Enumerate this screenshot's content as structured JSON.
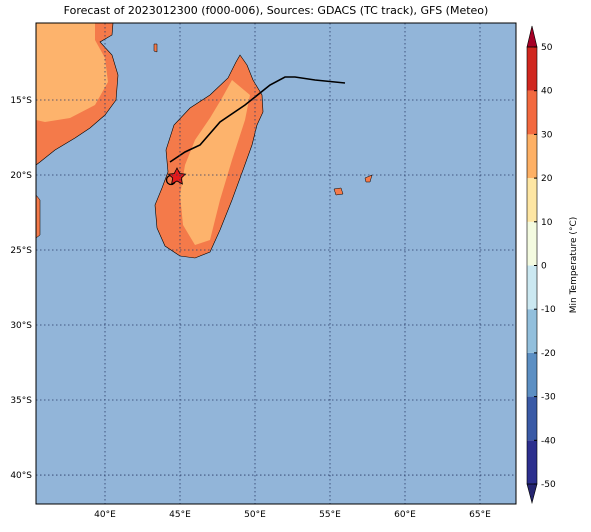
{
  "title": "Forecast of 2023012300 (f000-006), Sources: GDACS (TC track), GFS (Meteo)",
  "map": {
    "lon_range": [
      35.4,
      67.4
    ],
    "lat_range": [
      -9.87,
      -41.93
    ],
    "lon_ticks": [
      {
        "value": 40,
        "label": "40°E"
      },
      {
        "value": 45,
        "label": "45°E"
      },
      {
        "value": 50,
        "label": "50°E"
      },
      {
        "value": 55,
        "label": "55°E"
      },
      {
        "value": 60,
        "label": "60°E"
      },
      {
        "value": 65,
        "label": "65°E"
      }
    ],
    "lat_ticks": [
      {
        "value": -15,
        "label": "15°S"
      },
      {
        "value": -20,
        "label": "20°S"
      },
      {
        "value": -25,
        "label": "25°S"
      },
      {
        "value": -30,
        "label": "30°S"
      },
      {
        "value": -35,
        "label": "35°S"
      },
      {
        "value": -40,
        "label": "40°S"
      }
    ],
    "grid": true
  },
  "colorbar": {
    "label": "Min Temperature (°C)",
    "range": [
      -50,
      50
    ],
    "ticks": [
      -50,
      -40,
      -30,
      -20,
      -10,
      0,
      10,
      20,
      30,
      40,
      50
    ],
    "colors": [
      "#2c2f8e",
      "#3a5aa6",
      "#5c8fc3",
      "#92bfdc",
      "#cbe8f1",
      "#f4fbe0",
      "#fee6a3",
      "#fdb065",
      "#f2693f",
      "#d0271f"
    ],
    "extend_colors": [
      "#252570",
      "#a50026"
    ]
  }
}
